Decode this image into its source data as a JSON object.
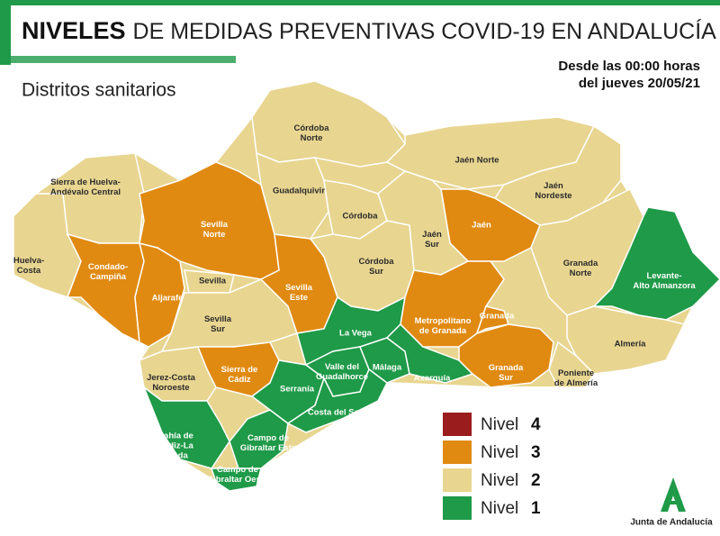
{
  "header": {
    "title_bold": "NIVELES",
    "title_rest": "DE MEDIDAS PREVENTIVAS COVID-19 EN ANDALUCÍA",
    "subtitle": "Distritos sanitarios",
    "date_lines": [
      "Desde las 00:00 horas",
      "del jueves 20/05/21"
    ]
  },
  "legend": [
    {
      "label": "Nivel",
      "level": 4,
      "color": "#9b1c1c"
    },
    {
      "label": "Nivel",
      "level": 3,
      "color": "#e08a12"
    },
    {
      "label": "Nivel",
      "level": 2,
      "color": "#e8d590"
    },
    {
      "label": "Nivel",
      "level": 1,
      "color": "#1f9a48"
    }
  ],
  "districts": [
    {
      "lines": [
        "Huelva-",
        "Costa"
      ],
      "level": 2
    },
    {
      "lines": [
        "Sierra de Huelva-",
        "Andévalo Central"
      ],
      "level": 2
    },
    {
      "lines": [
        "Condado-",
        "Campiña"
      ],
      "level": 3
    },
    {
      "lines": [
        "Aljarafe"
      ],
      "level": 3
    },
    {
      "lines": [
        "Sevilla",
        "Norte"
      ],
      "level": 3
    },
    {
      "lines": [
        "Sevilla"
      ],
      "level": 2
    },
    {
      "lines": [
        "Sevilla",
        "Sur"
      ],
      "level": 2
    },
    {
      "lines": [
        "Sevilla",
        "Este"
      ],
      "level": 3
    },
    {
      "lines": [
        "Jerez-Costa",
        "Noroeste"
      ],
      "level": 2
    },
    {
      "lines": [
        "Sierra de",
        "Cádiz"
      ],
      "level": 3
    },
    {
      "lines": [
        "Bahía de",
        "Cádiz-La",
        "Janda"
      ],
      "level": 1
    },
    {
      "lines": [
        "Campo de",
        "Gibraltar Este"
      ],
      "level": 1
    },
    {
      "lines": [
        "Campo de",
        "Gibraltar Oeste"
      ],
      "level": 1
    },
    {
      "lines": [
        "Serranía"
      ],
      "level": 1
    },
    {
      "lines": [
        "Córdoba",
        "Norte"
      ],
      "level": 2
    },
    {
      "lines": [
        "Guadalquivir"
      ],
      "level": 2
    },
    {
      "lines": [
        "Córdoba"
      ],
      "level": 2
    },
    {
      "lines": [
        "Córdoba",
        "Sur"
      ],
      "level": 2
    },
    {
      "lines": [
        "La Vega"
      ],
      "level": 1
    },
    {
      "lines": [
        "Valle del",
        "Guadalhorce"
      ],
      "level": 1
    },
    {
      "lines": [
        "Málaga"
      ],
      "level": 1
    },
    {
      "lines": [
        "Costa del Sol"
      ],
      "level": 1
    },
    {
      "lines": [
        "Axarquía"
      ],
      "level": 1
    },
    {
      "lines": [
        "Jaén Norte"
      ],
      "level": 2
    },
    {
      "lines": [
        "Jaén"
      ],
      "level": 3
    },
    {
      "lines": [
        "Jaén",
        "Sur"
      ],
      "level": 2
    },
    {
      "lines": [
        "Jaén",
        "Nordeste"
      ],
      "level": 2
    },
    {
      "lines": [
        "Granada",
        "Norte"
      ],
      "level": 2
    },
    {
      "lines": [
        "Levante-",
        "Alto Almanzora"
      ],
      "level": 1
    },
    {
      "lines": [
        "Almería"
      ],
      "level": 2
    },
    {
      "lines": [
        "Poniente",
        "de Almería"
      ],
      "level": 2
    },
    {
      "lines": [
        "Metropolitano",
        "de Granada"
      ],
      "level": 3
    },
    {
      "lines": [
        "Granada"
      ],
      "level": 3
    },
    {
      "lines": [
        "Granada",
        "Sur"
      ],
      "level": 3
    }
  ],
  "footer": {
    "logo_text": "Junta de Andalucía"
  }
}
